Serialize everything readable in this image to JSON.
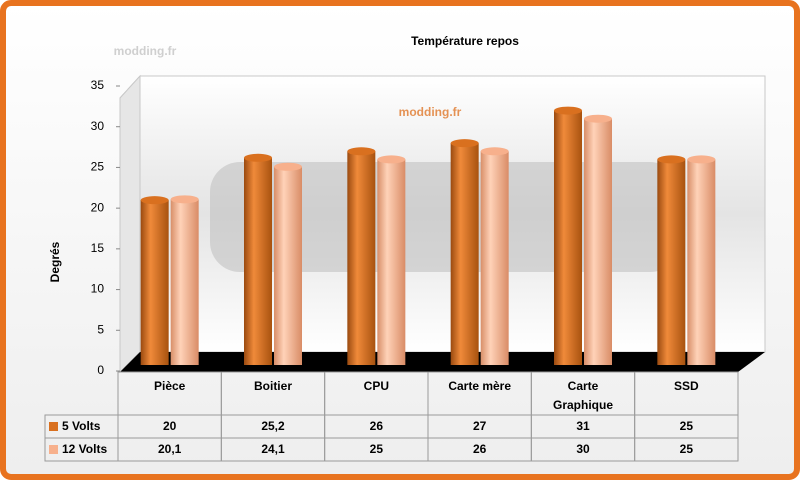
{
  "chart_data": {
    "type": "bar",
    "title": "Température repos",
    "watermark": "modding.fr",
    "y_label": "Degrés",
    "categories": [
      "Pièce",
      "Boitier",
      "CPU",
      "Carte mère",
      "Carte Graphique",
      "SSD"
    ],
    "series": [
      {
        "name": "5 Volts",
        "color": "#d9701f",
        "values": [
          20,
          25.2,
          26,
          27,
          31,
          25
        ],
        "value_labels": [
          "20",
          "25,2",
          "26",
          "27",
          "31",
          "25"
        ]
      },
      {
        "name": "12 Volts",
        "color": "#f7b08c",
        "values": [
          20.1,
          24.1,
          25,
          26,
          30,
          25
        ],
        "value_labels": [
          "20,1",
          "24,1",
          "25",
          "26",
          "30",
          "25"
        ]
      }
    ],
    "ylim": [
      0,
      35
    ],
    "yticks": [
      0,
      5,
      10,
      15,
      20,
      25,
      30,
      35
    ],
    "grid": false
  }
}
